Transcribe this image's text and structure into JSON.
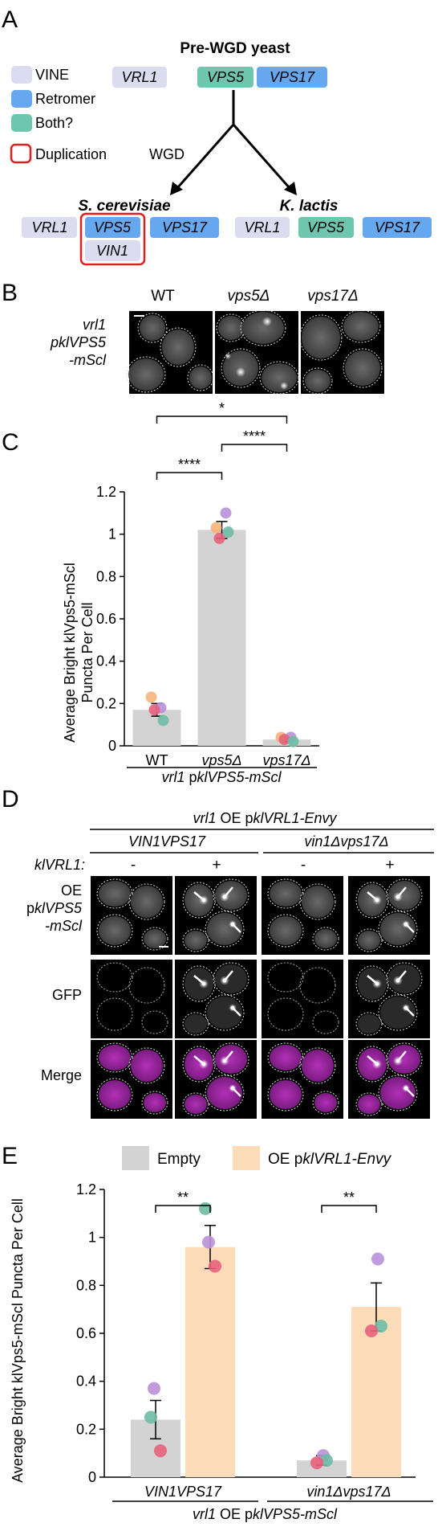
{
  "panel_letters": {
    "a": "A",
    "b": "B",
    "c": "C",
    "d": "D",
    "e": "E"
  },
  "panelA": {
    "pre_wgd_title": "Pre-WGD yeast",
    "legend": [
      {
        "label": "VINE",
        "color": "#dcdcf0"
      },
      {
        "label": "Retromer",
        "color": "#66a8f0"
      },
      {
        "label": "Both?",
        "color": "#6ec6ae"
      }
    ],
    "duplication_label": "Duplication",
    "duplication_color": "#e02020",
    "wgd_label": "WGD",
    "pre_genes": [
      "VRL1",
      "VPS5",
      "VPS17"
    ],
    "scer_title": "S. cerevisiae",
    "scer_genes": [
      "VRL1",
      "VPS5",
      "VPS17",
      "VIN1"
    ],
    "klac_title": "K. lactis",
    "klac_genes": [
      "VRL1",
      "VPS5",
      "VPS17"
    ]
  },
  "panelB": {
    "cols": [
      "WT",
      "vps5Δ",
      "vps17Δ"
    ],
    "row_label": [
      "vrl1",
      "pklVPS5",
      "-mScl"
    ]
  },
  "panelD": {
    "title": "vrl1 OE pklVRL1-Envy",
    "groups": [
      "VIN1VPS17",
      "vin1Δvps17Δ"
    ],
    "klvrl1_label": "klVRL1:",
    "signs": [
      "-",
      "+",
      "-",
      "+"
    ],
    "rows": [
      [
        "OE",
        "pklVPS5",
        "-mScl"
      ],
      [
        "GFP"
      ],
      [
        "Merge"
      ]
    ]
  },
  "chart_data": [
    {
      "type": "bar",
      "panel": "C",
      "categories": [
        "WT",
        "vps5Δ",
        "vps17Δ"
      ],
      "values": [
        0.17,
        1.02,
        0.03
      ],
      "errors": [
        0.03,
        0.04,
        0.01
      ],
      "replicates": [
        {
          "color": "#f5b47a",
          "values": [
            0.23,
            1.03,
            0.04
          ]
        },
        {
          "color": "#b991d8",
          "values": [
            0.18,
            1.1,
            0.04
          ]
        },
        {
          "color": "#e8607c",
          "values": [
            0.17,
            0.98,
            0.03
          ]
        },
        {
          "color": "#6dbca5",
          "values": [
            0.12,
            1.01,
            0.02
          ]
        }
      ],
      "ylabel": [
        "Average Bright klVps5-mScl",
        "Puncta Per Cell"
      ],
      "xlabel": "vrl1 pklVPS5-mScl",
      "ylim": [
        0,
        1.2
      ],
      "yticks": [
        "0",
        "0.2",
        "0.4",
        "0.6",
        "0.8",
        "1",
        "1.2"
      ],
      "significance": [
        "****",
        "****",
        "*"
      ],
      "bar_color": "#d3d3d3"
    },
    {
      "type": "bar",
      "panel": "E",
      "legend": [
        "Empty",
        "OE pklVRL1-Envy"
      ],
      "legend_colors": [
        "#d3d3d3",
        "#fcdcb8"
      ],
      "groups": [
        "VIN1VPS17",
        "vin1Δvps17Δ"
      ],
      "series": [
        {
          "name": "Empty",
          "values": [
            0.24,
            0.07
          ],
          "errors": [
            0.08,
            0.02
          ]
        },
        {
          "name": "OE pklVRL1-Envy",
          "values": [
            0.96,
            0.71
          ],
          "errors": [
            0.09,
            0.1
          ]
        }
      ],
      "replicates": [
        {
          "color": "#b991d8",
          "values": [
            0.37,
            0.09,
            0.98,
            0.91
          ]
        },
        {
          "color": "#6dbca5",
          "values": [
            0.25,
            0.07,
            1.12,
            0.63
          ]
        },
        {
          "color": "#e8607c",
          "values": [
            0.11,
            0.06,
            0.88,
            0.61
          ]
        }
      ],
      "ylabel": "Average Bright klVps5-mScl Puncta Per Cell",
      "xlabel": "vrl1 OE pklVPS5-mScl",
      "ylim": [
        0,
        1.2
      ],
      "yticks": [
        "0",
        "0.2",
        "0.4",
        "0.6",
        "0.8",
        "1",
        "1.2"
      ],
      "significance": [
        "**",
        "**"
      ]
    }
  ]
}
